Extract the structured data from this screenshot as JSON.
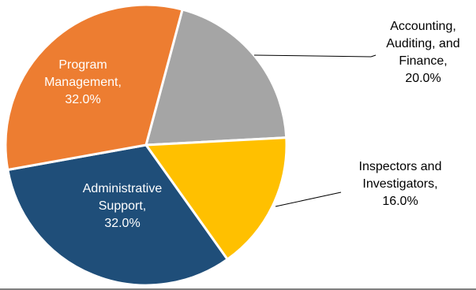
{
  "chart_data": {
    "type": "pie",
    "title": "",
    "slices": [
      {
        "name": "Accounting, Auditing, and Finance",
        "value": 20.0,
        "label_lines": [
          "Accounting,",
          "Auditing, and",
          "Finance,",
          "20.0%"
        ],
        "color": "#A5A5A5",
        "label_color": "#000000",
        "label_position": "outside-right",
        "leader_line": true
      },
      {
        "name": "Inspectors and Investigators",
        "value": 16.0,
        "label_lines": [
          "Inspectors and",
          "Investigators,",
          "16.0%"
        ],
        "color": "#FFC000",
        "label_color": "#000000",
        "label_position": "outside-right",
        "leader_line": true
      },
      {
        "name": "Administrative Support",
        "value": 32.0,
        "label_lines": [
          "Administrative",
          "Support,",
          "32.0%"
        ],
        "color": "#1F4E79",
        "label_color": "#FFFFFF",
        "label_position": "inside",
        "leader_line": false
      },
      {
        "name": "Program Management",
        "value": 32.0,
        "label_lines": [
          "Program",
          "Management,",
          "32.0%"
        ],
        "color": "#ED7D31",
        "label_color": "#FFFFFF",
        "label_position": "inside",
        "leader_line": false
      }
    ],
    "legend": "none",
    "start_angle_deg": 15,
    "direction": "clockwise"
  }
}
